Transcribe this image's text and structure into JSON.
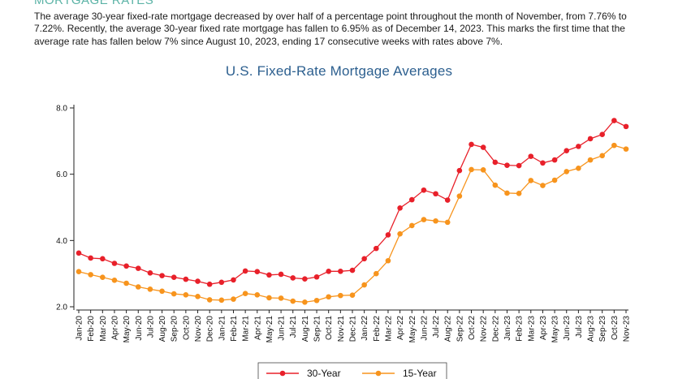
{
  "section": {
    "heading": "MORTGAGE RATES",
    "paragraph": "The average 30-year fixed-rate mortgage decreased by over half of a percentage point throughout the month of November, from 7.76% to 7.22%. Recently, the average 30-year fixed rate mortgage has fallen to 6.95% as of December 14, 2023. This marks the first time that the average rate has fallen below 7% since August 10, 2023, ending 17 consecutive weeks with rates above 7%."
  },
  "chart_data": {
    "type": "line",
    "title": "U.S. Fixed-Rate Mortgage Averages",
    "xlabel": "",
    "ylabel": "",
    "ylim": [
      2.0,
      8.0
    ],
    "yticks": [
      "2.0",
      "4.0",
      "6.0",
      "8.0"
    ],
    "grid": false,
    "legend": "bottom-center",
    "categories": [
      "Jan-20",
      "Feb-20",
      "Mar-20",
      "Apr-20",
      "May-20",
      "Jun-20",
      "Jul-20",
      "Aug-20",
      "Sep-20",
      "Oct-20",
      "Nov-20",
      "Dec-20",
      "Jan-21",
      "Feb-21",
      "Mar-21",
      "Apr-21",
      "May-21",
      "Jun-21",
      "Jul-21",
      "Aug-21",
      "Sep-21",
      "Oct-21",
      "Nov-21",
      "Dec-21",
      "Jan-22",
      "Feb-22",
      "Mar-22",
      "Apr-22",
      "May-22",
      "Jun-22",
      "Jul-22",
      "Aug-22",
      "Sep-22",
      "Oct-22",
      "Nov-22",
      "Dec-22",
      "Jan-23",
      "Feb-23",
      "Mar-23",
      "Apr-23",
      "May-23",
      "Jun-23",
      "Jul-23",
      "Aug-23",
      "Sep-23",
      "Oct-23",
      "Nov-23"
    ],
    "series": [
      {
        "name": "30-Year",
        "color": "#e8202a",
        "values": [
          3.62,
          3.47,
          3.45,
          3.31,
          3.23,
          3.16,
          3.02,
          2.94,
          2.89,
          2.83,
          2.77,
          2.68,
          2.74,
          2.81,
          3.08,
          3.06,
          2.96,
          2.98,
          2.87,
          2.84,
          2.9,
          3.07,
          3.07,
          3.1,
          3.45,
          3.76,
          4.17,
          4.98,
          5.23,
          5.52,
          5.41,
          5.22,
          6.11,
          6.9,
          6.81,
          6.36,
          6.27,
          6.26,
          6.54,
          6.34,
          6.43,
          6.71,
          6.84,
          7.07,
          7.2,
          7.62,
          7.44
        ]
      },
      {
        "name": "15-Year",
        "color": "#f7941d",
        "values": [
          3.06,
          2.97,
          2.89,
          2.8,
          2.71,
          2.6,
          2.53,
          2.47,
          2.39,
          2.36,
          2.31,
          2.21,
          2.2,
          2.23,
          2.4,
          2.36,
          2.27,
          2.26,
          2.17,
          2.14,
          2.19,
          2.3,
          2.34,
          2.35,
          2.66,
          3.0,
          3.39,
          4.2,
          4.45,
          4.63,
          4.59,
          4.55,
          5.34,
          6.14,
          6.13,
          5.67,
          5.43,
          5.42,
          5.81,
          5.66,
          5.82,
          6.08,
          6.18,
          6.43,
          6.56,
          6.87,
          6.76
        ]
      }
    ]
  }
}
